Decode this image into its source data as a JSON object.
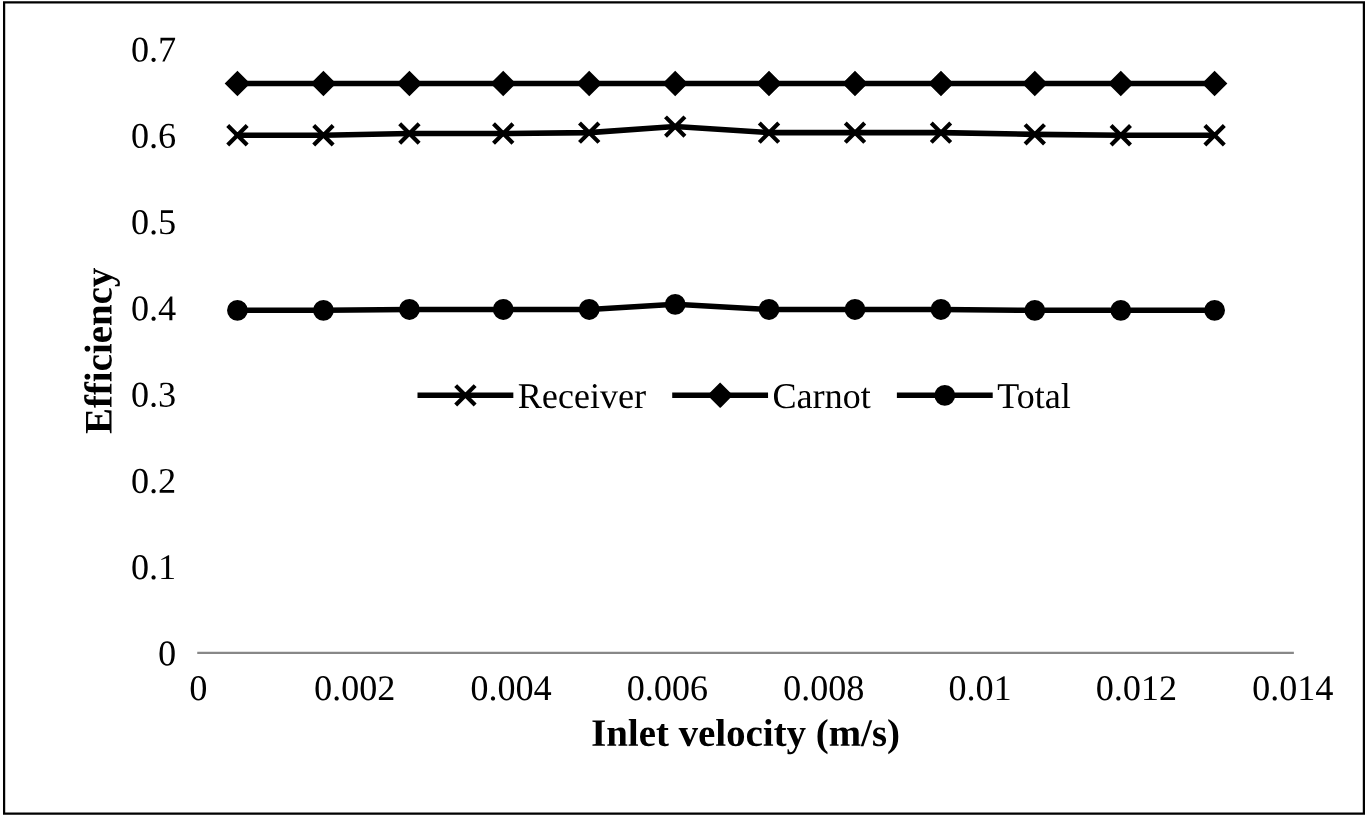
{
  "chart_data": {
    "type": "line",
    "xlabel": "Inlet velocity (m/s)",
    "ylabel": "Efficiency",
    "x": [
      0.0005,
      0.0016,
      0.0027,
      0.0039,
      0.005,
      0.0061,
      0.0073,
      0.0084,
      0.0095,
      0.0107,
      0.0118,
      0.013
    ],
    "series": [
      {
        "name": "Receiver",
        "color": "#000000",
        "marker": "cross",
        "values": [
          0.6,
          0.6,
          0.602,
          0.602,
          0.603,
          0.61,
          0.603,
          0.603,
          0.603,
          0.601,
          0.6,
          0.6
        ]
      },
      {
        "name": "Carnot",
        "color": "#000000",
        "marker": "diamond",
        "values": [
          0.66,
          0.66,
          0.66,
          0.66,
          0.66,
          0.66,
          0.66,
          0.66,
          0.66,
          0.66,
          0.66,
          0.66
        ]
      },
      {
        "name": "Total",
        "color": "#000000",
        "marker": "circle",
        "values": [
          0.397,
          0.397,
          0.398,
          0.398,
          0.398,
          0.404,
          0.398,
          0.398,
          0.398,
          0.397,
          0.397,
          0.397
        ]
      }
    ],
    "xlim": [
      0,
      0.014
    ],
    "xticks": [
      0,
      0.002,
      0.004,
      0.006,
      0.008,
      0.01,
      0.012,
      0.014
    ],
    "ylim": [
      0,
      0.7
    ],
    "yticks": [
      0,
      0.1,
      0.2,
      0.3,
      0.4,
      0.5,
      0.6,
      0.7
    ],
    "grid": false,
    "legend": "center"
  }
}
